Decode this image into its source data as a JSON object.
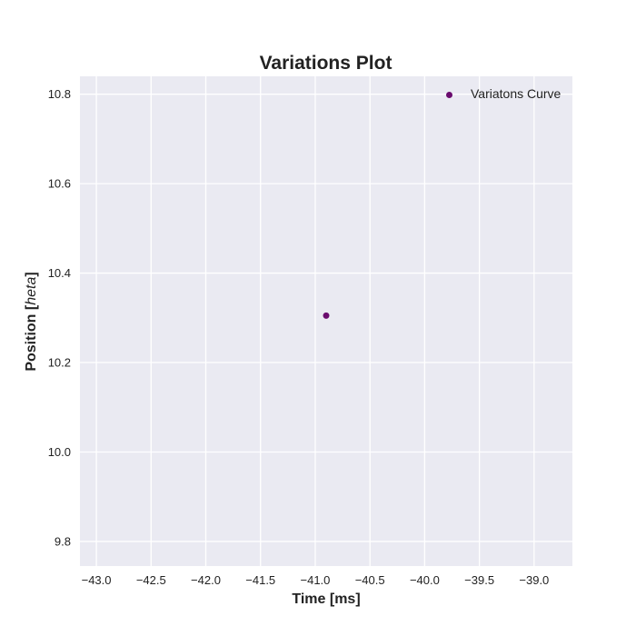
{
  "chart_data": {
    "type": "scatter",
    "title": "Variations Plot",
    "xlabel": "Time [ms]",
    "ylabel_prefix": "Position [",
    "ylabel_math": "heta",
    "ylabel_suffix": "]",
    "xlim": [
      -43.15,
      -38.65
    ],
    "ylim": [
      9.745,
      10.84
    ],
    "xticks": [
      -43.0,
      -42.5,
      -42.0,
      -41.5,
      -41.0,
      -40.5,
      -40.0,
      -39.5,
      -39.0
    ],
    "xtick_labels": [
      "−43.0",
      "−42.5",
      "−42.0",
      "−41.5",
      "−41.0",
      "−40.5",
      "−40.0",
      "−39.5",
      "−39.0"
    ],
    "yticks": [
      9.8,
      10.0,
      10.2,
      10.4,
      10.6,
      10.8
    ],
    "ytick_labels": [
      "9.8",
      "10.0",
      "10.2",
      "10.4",
      "10.6",
      "10.8"
    ],
    "grid": true,
    "legend_position": "upper-right",
    "series": [
      {
        "name": "Variatons Curve",
        "color": "#6a0b6e",
        "points": [
          {
            "x": -40.9,
            "y": 10.305
          }
        ]
      }
    ],
    "background_color": "#eaeaf2"
  }
}
